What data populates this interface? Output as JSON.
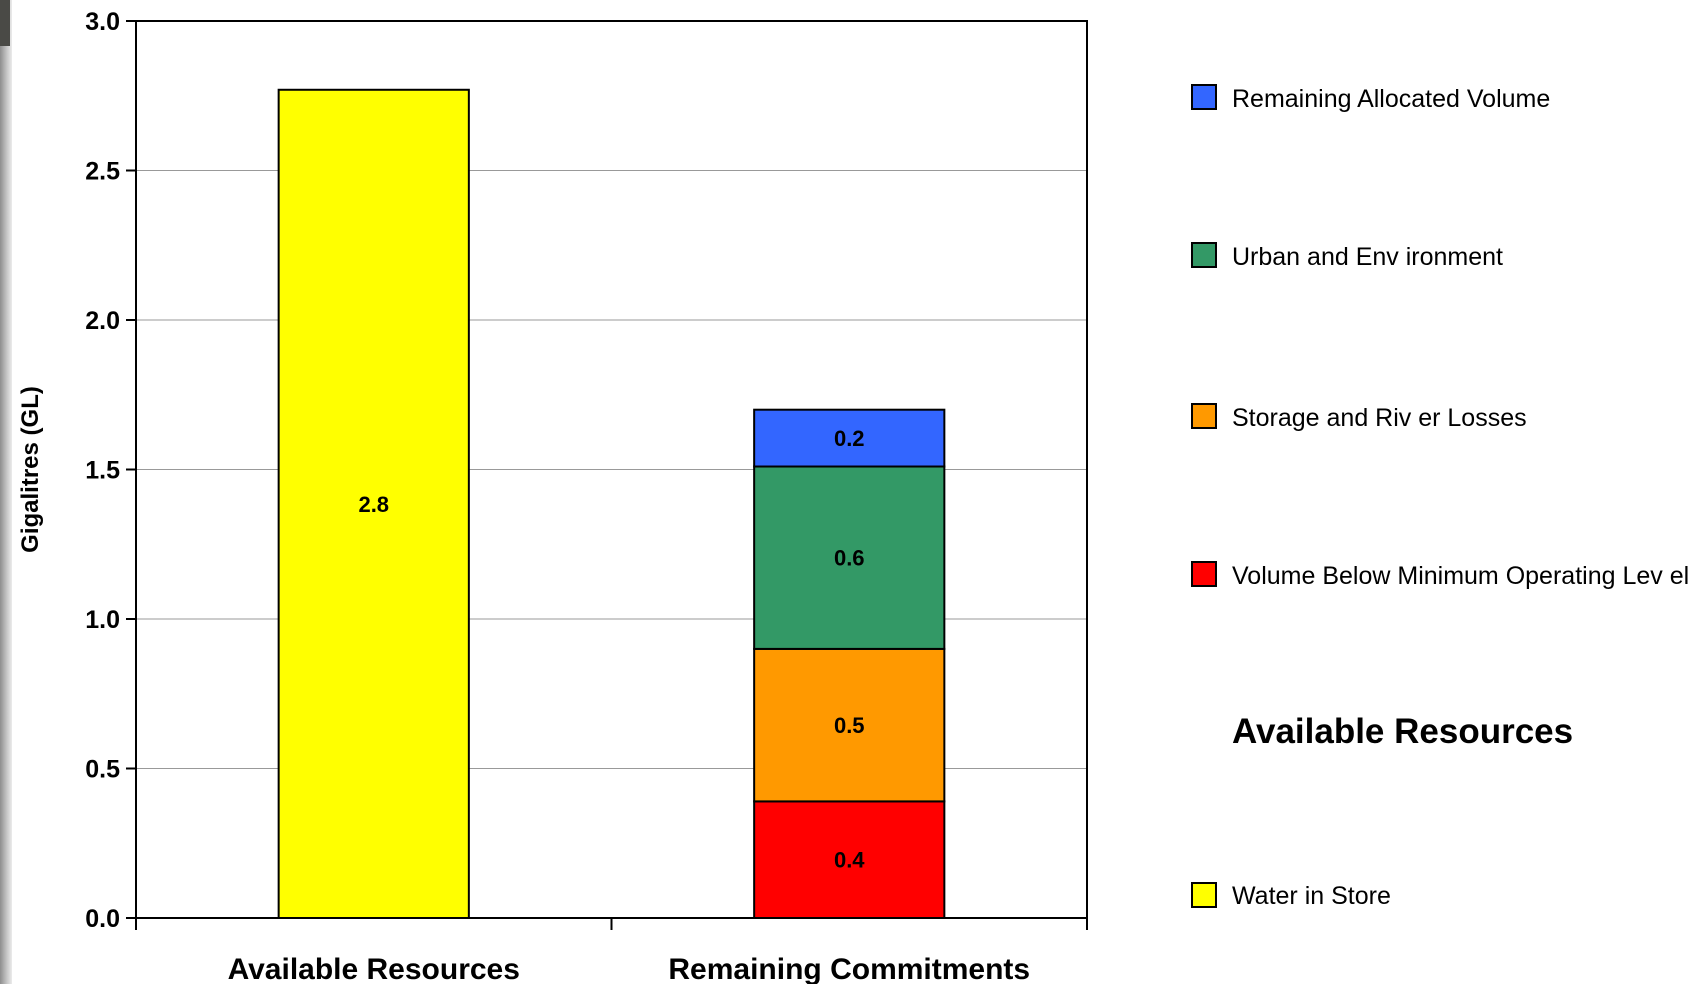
{
  "chart_data": {
    "type": "bar",
    "stacked": true,
    "categories": [
      "Available Resources",
      "Remaining Commitments"
    ],
    "ylabel": "Gigalitres (GL)",
    "xlabel": "",
    "ylim": [
      0,
      3.0
    ],
    "yticks": [
      "0.0",
      "0.5",
      "1.0",
      "1.5",
      "2.0",
      "2.5",
      "3.0"
    ],
    "grid": true,
    "legend_position": "right",
    "legend_heading": "Available Resources",
    "series": [
      {
        "name": "Water in Store",
        "color": "#ffff00",
        "values": [
          2.77,
          0
        ],
        "labels": [
          "2.8",
          ""
        ]
      },
      {
        "name": "Volume Below  Minimum Operating Lev el",
        "color": "#ff0000",
        "values": [
          0,
          0.39
        ],
        "labels": [
          "",
          "0.4"
        ]
      },
      {
        "name": "Storage and Riv er Losses",
        "color": "#ff9900",
        "values": [
          0,
          0.51
        ],
        "labels": [
          "",
          "0.5"
        ]
      },
      {
        "name": "Urban and Env ironment",
        "color": "#339966",
        "values": [
          0,
          0.61
        ],
        "labels": [
          "",
          "0.6"
        ]
      },
      {
        "name": "Remaining Allocated Volume",
        "color": "#3366ff",
        "values": [
          0,
          0.19
        ],
        "labels": [
          "",
          "0.2"
        ]
      }
    ]
  }
}
